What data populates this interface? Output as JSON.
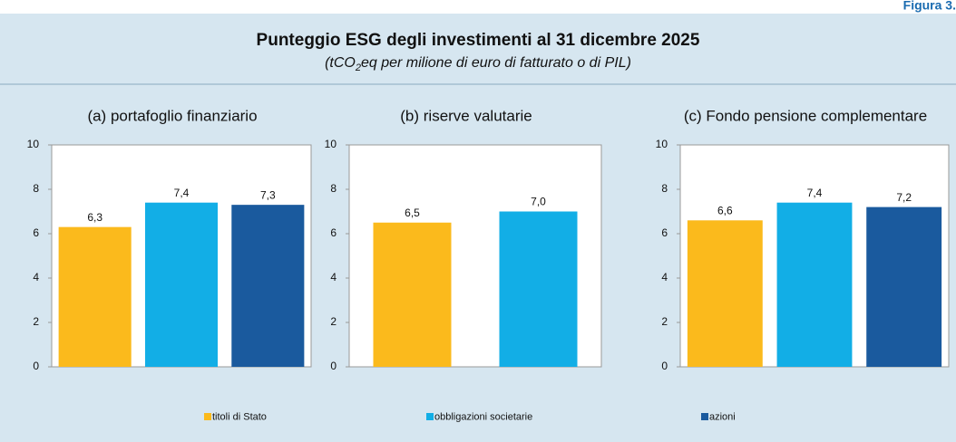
{
  "figure_label": "Figura 3.",
  "title": "Punteggio ESG degli investimenti al 31 dicembre 2025",
  "subtitle_parts": [
    "(tCO",
    "2",
    "eq per milione di euro di fatturato o di PIL)"
  ],
  "legend": [
    {
      "name": "titoli di Stato",
      "color": "#fbba1c"
    },
    {
      "name": "obbligazioni societarie",
      "color": "#12aee6"
    },
    {
      "name": "azioni",
      "color": "#1a5a9e"
    }
  ],
  "chart_data": [
    {
      "type": "bar",
      "title": "(a) portafoglio finanziario",
      "values": [
        6.3,
        7.4,
        7.3
      ],
      "value_labels": [
        "6,3",
        "7,4",
        "7,3"
      ],
      "colors": [
        "#fbba1c",
        "#12aee6",
        "#1a5a9e"
      ],
      "ylim": [
        0,
        10
      ],
      "yticks": [
        0,
        2,
        4,
        6,
        8,
        10
      ]
    },
    {
      "type": "bar",
      "title": "(b) riserve valutarie",
      "values": [
        6.5,
        7.0
      ],
      "value_labels": [
        "6,5",
        "7,0"
      ],
      "colors": [
        "#fbba1c",
        "#12aee6"
      ],
      "ylim": [
        0,
        10
      ],
      "yticks": [
        0,
        2,
        4,
        6,
        8,
        10
      ]
    },
    {
      "type": "bar",
      "title": "(c) Fondo pensione complementare",
      "values": [
        6.6,
        7.4,
        7.2
      ],
      "value_labels": [
        "6,6",
        "7,4",
        "7,2"
      ],
      "colors": [
        "#fbba1c",
        "#12aee6",
        "#1a5a9e"
      ],
      "ylim": [
        0,
        10
      ],
      "yticks": [
        0,
        2,
        4,
        6,
        8,
        10
      ]
    }
  ]
}
